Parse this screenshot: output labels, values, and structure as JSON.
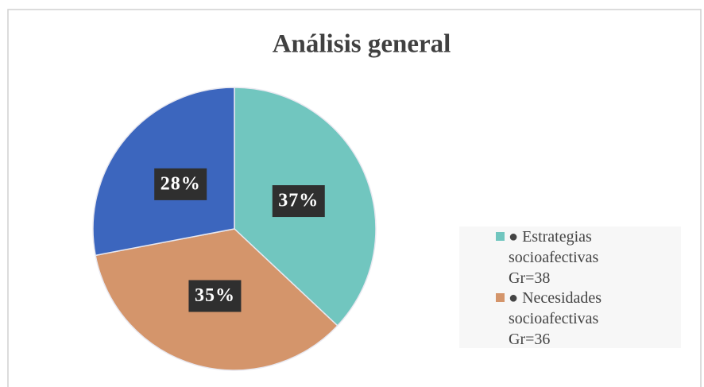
{
  "chart_data": {
    "type": "pie",
    "title": "Análisis general",
    "categories": [
      "● Estrategias socioafectivas Gr=38",
      "● Necesidades socioafectivas Gr=36",
      null
    ],
    "values": [
      37,
      35,
      28
    ],
    "value_labels": [
      "37%",
      "35%",
      "28%"
    ],
    "colors": [
      "#71c6bf",
      "#d4956b",
      "#3c66be"
    ],
    "legend": "right"
  }
}
